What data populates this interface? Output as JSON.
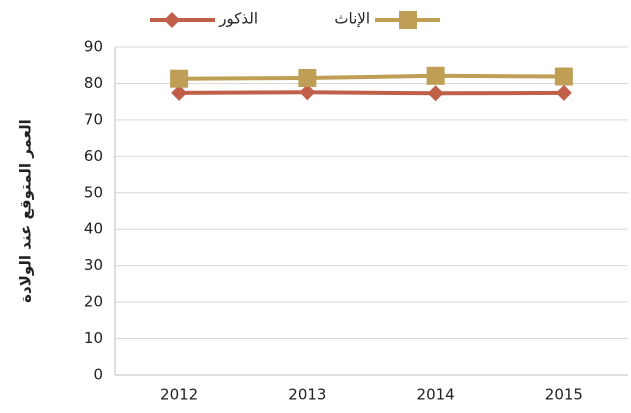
{
  "chart_data": {
    "type": "line",
    "ylabel": "العمر المتوقع عند الولادة",
    "categories": [
      "2012",
      "2013",
      "2014",
      "2015"
    ],
    "series": [
      {
        "name": "الذكور",
        "color": "#c0604a",
        "marker": "diamond",
        "values": [
          77.4,
          77.6,
          77.3,
          77.4
        ]
      },
      {
        "name": "الإناث",
        "color": "#bf9f55",
        "marker": "square",
        "values": [
          81.3,
          81.5,
          82.1,
          81.9
        ]
      }
    ],
    "ylim": [
      0,
      90
    ],
    "yticks": [
      0,
      10,
      20,
      30,
      40,
      50,
      60,
      70,
      80,
      90
    ],
    "grid": true
  }
}
